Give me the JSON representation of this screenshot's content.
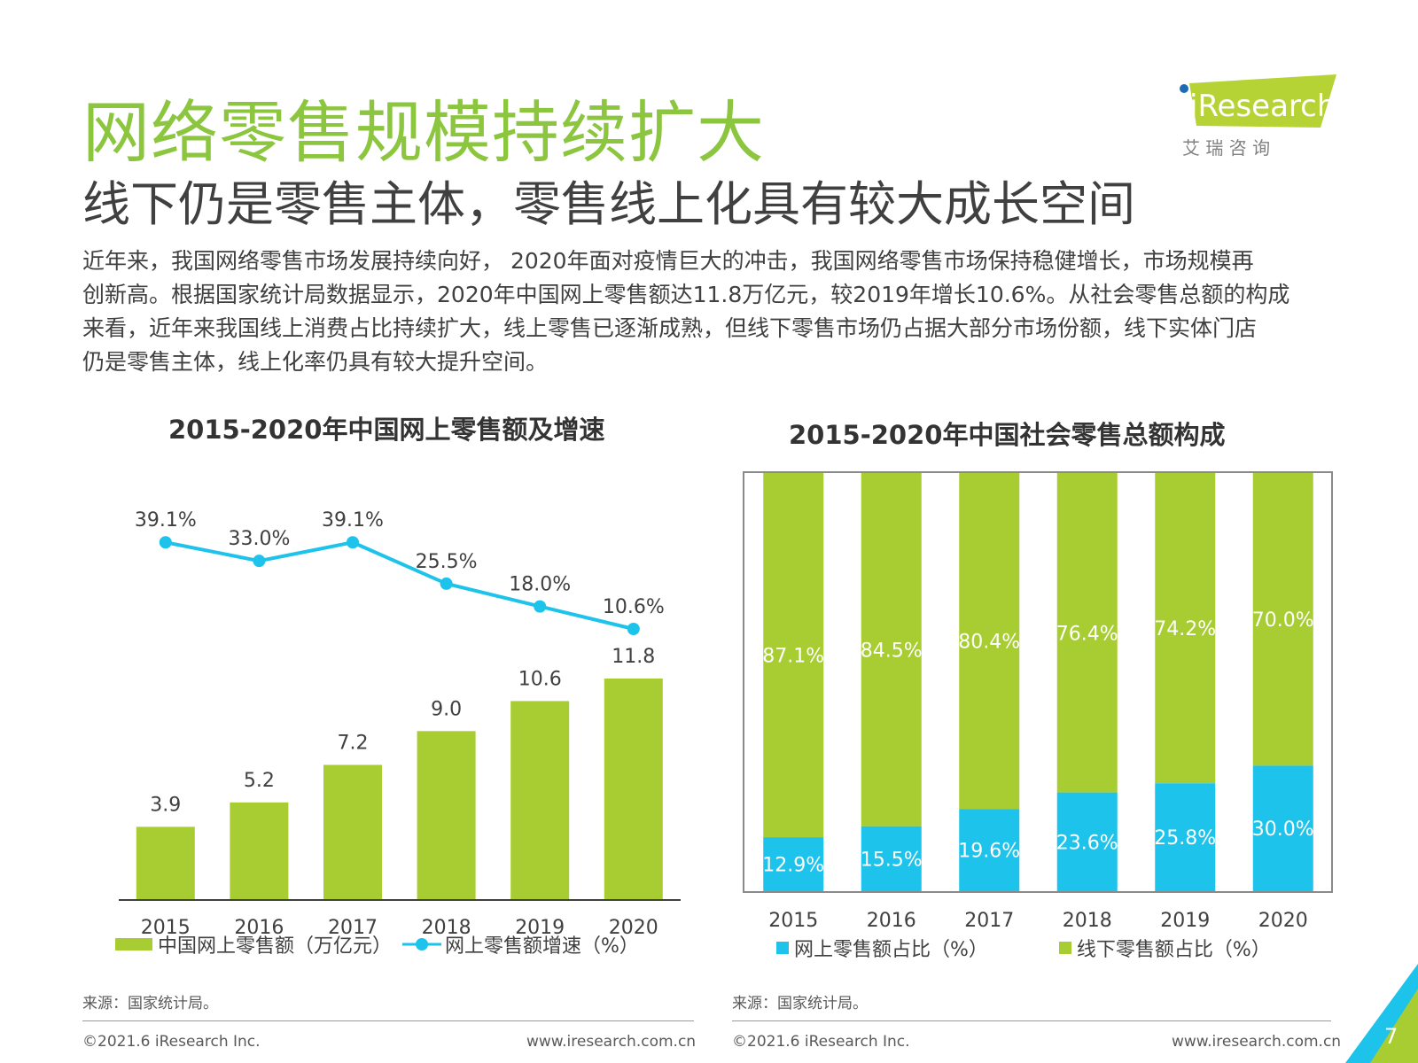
{
  "title": "网络零售规模持续扩大",
  "subtitle": "线下仍是零售主体，零售线上化具有较大成长空间",
  "body_lines": [
    "近年来，我国网络零售市场发展持续向好， 2020年面对疫情巨大的冲击，我国网络零售市场保持稳健增长，市场规模再",
    "创新高。根据国家统计局数据显示，2020年中国网上零售额达11.8万亿元，较2019年增长10.6%。从社会零售总额的构成",
    "来看，近年来我国线上消费占比持续扩大，线上零售已逐渐成熟，但线下零售市场仍占据大部分市场份额，线下实体门店",
    "仍是零售主体，线上化率仍具有较大提升空间。"
  ],
  "logo": {
    "brand": "iResearch",
    "cn": "艾 瑞 咨 询"
  },
  "colors": {
    "green": "#8cc63f",
    "bar_green": "#a8cd32",
    "blue": "#1dc3ea",
    "text": "#404040"
  },
  "chart_data": [
    {
      "type": "bar+line",
      "title": "2015-2020年中国网上零售额及增速",
      "categories": [
        "2015",
        "2016",
        "2017",
        "2018",
        "2019",
        "2020"
      ],
      "series": [
        {
          "name": "中国网上零售额（万亿元）",
          "type": "bar",
          "values": [
            3.9,
            5.2,
            7.2,
            9.0,
            10.6,
            11.8
          ],
          "labels": [
            "3.9",
            "5.2",
            "7.2",
            "9.0",
            "10.6",
            "11.8"
          ]
        },
        {
          "name": "网上零售额增速（%）",
          "type": "line",
          "values": [
            39.1,
            33.0,
            39.1,
            25.5,
            18.0,
            10.6
          ],
          "labels": [
            "39.1%",
            "33.0%",
            "39.1%",
            "25.5%",
            "18.0%",
            "10.6%"
          ]
        }
      ],
      "source": "来源：国家统计局。"
    },
    {
      "type": "stacked-bar",
      "title": "2015-2020年中国社会零售总额构成",
      "categories": [
        "2015",
        "2016",
        "2017",
        "2018",
        "2019",
        "2020"
      ],
      "series": [
        {
          "name": "网上零售额占比（%）",
          "values": [
            12.9,
            15.5,
            19.6,
            23.6,
            25.8,
            30.0
          ],
          "labels": [
            "12.9%",
            "15.5%",
            "19.6%",
            "23.6%",
            "25.8%",
            "30.0%"
          ]
        },
        {
          "name": "线下零售额占比（%）",
          "values": [
            87.1,
            84.5,
            80.4,
            76.4,
            74.2,
            70.0
          ],
          "labels": [
            "87.1%",
            "84.5%",
            "80.4%",
            "76.4%",
            "74.2%",
            "70.0%"
          ]
        }
      ],
      "ylim": [
        0,
        100
      ],
      "source": "来源：国家统计局。"
    }
  ],
  "footer": {
    "left": "©2021.6 iResearch Inc.",
    "right": "www.iresearch.com.cn",
    "page": "7"
  }
}
